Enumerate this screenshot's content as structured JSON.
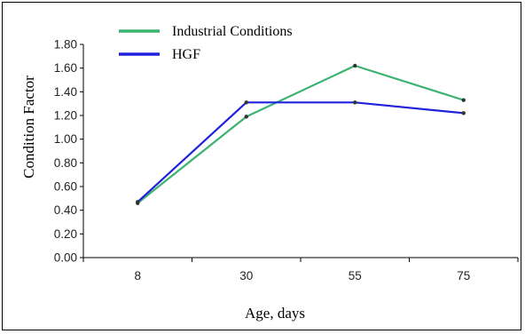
{
  "chart_data": {
    "type": "line",
    "title": "",
    "xlabel": "Age, days",
    "ylabel": "Condition Factor",
    "categories": [
      "8",
      "30",
      "55",
      "75"
    ],
    "ylim": [
      0,
      1.8
    ],
    "yticks": [
      "0.00",
      "0.20",
      "0.40",
      "0.60",
      "0.80",
      "1.00",
      "1.20",
      "1.40",
      "1.60",
      "1.80"
    ],
    "grid": false,
    "legend_position": "top-left",
    "series": [
      {
        "name": "Industrial Conditions",
        "color": "#3cb371",
        "values": [
          0.46,
          1.19,
          1.62,
          1.33
        ]
      },
      {
        "name": "HGF",
        "color": "#2222dd",
        "values": [
          0.47,
          1.31,
          1.31,
          1.22
        ]
      }
    ]
  }
}
